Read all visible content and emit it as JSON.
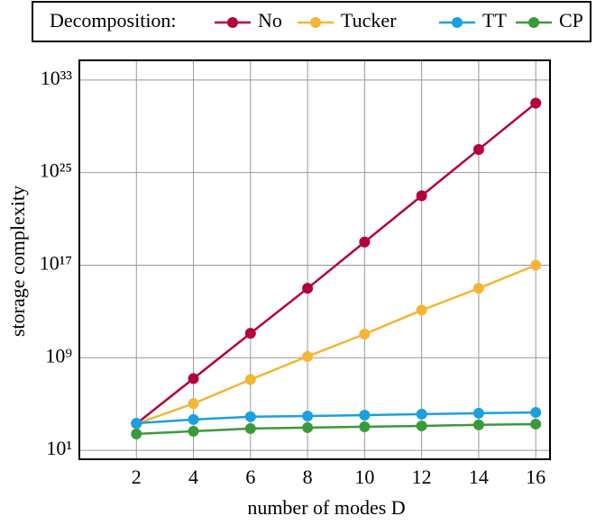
{
  "chart_data": {
    "type": "line",
    "legend_title": "Decomposition:",
    "xlabel": "number of modes D",
    "ylabel": "storage complexity",
    "x": [
      2,
      4,
      6,
      8,
      10,
      12,
      14,
      16
    ],
    "series": [
      {
        "name": "No",
        "color": "#b5003f",
        "values": [
          2000,
          16000000,
          130000000000,
          1000000000000000.0,
          1e+19,
          1e+23,
          1e+27,
          1e+31
        ]
      },
      {
        "name": "Tucker",
        "color": "#f5b535",
        "values": [
          2000,
          110000,
          13000000,
          1300000000,
          110000000000,
          13000000000000,
          1000000000000000.0,
          1e+17
        ]
      },
      {
        "name": "TT",
        "color": "#1aa0e0",
        "values": [
          2200,
          4600,
          8000,
          9300,
          11000,
          13500,
          16000,
          19000
        ]
      },
      {
        "name": "CP",
        "color": "#3a9a3a",
        "values": [
          260,
          450,
          760,
          910,
          1100,
          1300,
          1600,
          1860
        ]
      }
    ],
    "xlim": [
      0,
      16.5
    ],
    "xticks": [
      2,
      4,
      6,
      8,
      10,
      12,
      14,
      16
    ],
    "ylim": [
      1.7,
      5e+34
    ],
    "yticks": [
      {
        "value": 10,
        "label": "10¹"
      },
      {
        "value": 1000000000.0,
        "label": "10⁹"
      },
      {
        "value": 1e+17,
        "label": "10¹⁷"
      },
      {
        "value": 1e+25,
        "label": "10²⁵"
      },
      {
        "value": 1e+33,
        "label": "10³³"
      }
    ],
    "ylog": true,
    "grid": true
  }
}
